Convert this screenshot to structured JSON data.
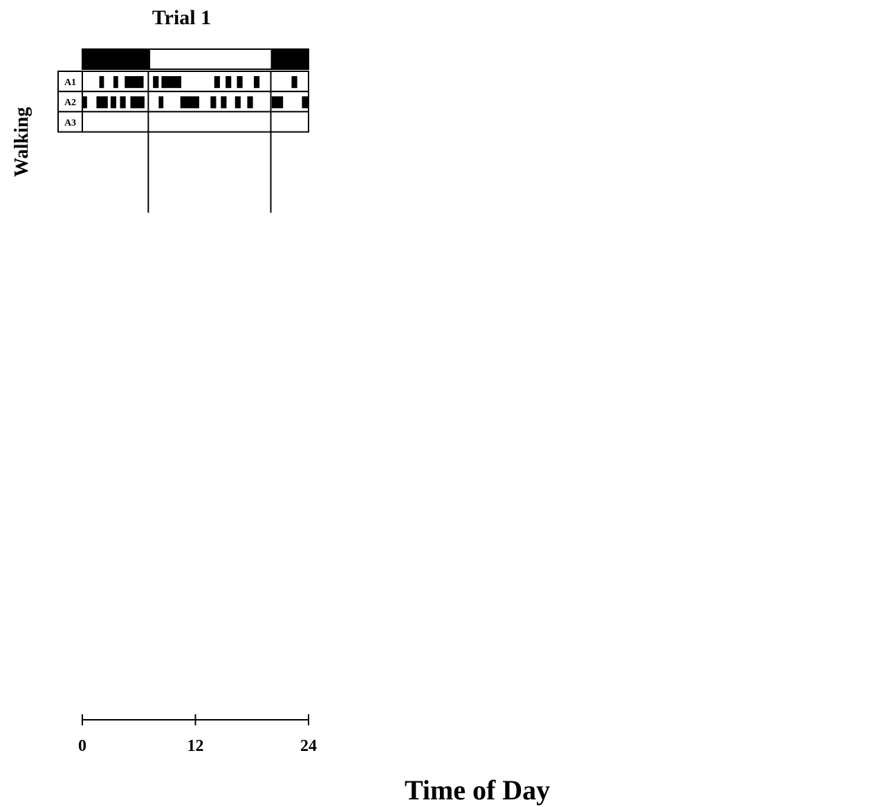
{
  "chart_data": {
    "type": "actogram",
    "xlabel": "Time of Day",
    "xlim": [
      0,
      24
    ],
    "xticks": [
      "0",
      "12",
      "24"
    ],
    "gray_color": "#c0c0c0",
    "bar_color": "#000000",
    "trials": [
      {
        "title": "Trial 1",
        "dark_periods": [
          [
            0,
            7.2
          ],
          [
            20,
            24
          ]
        ],
        "phase_lines": [
          7,
          20
        ],
        "behaviors": [
          {
            "name": "Walking",
            "animals": [
              {
                "id": "A1",
                "missing": false,
                "bouts": [
                  [
                    1.8,
                    2.3
                  ],
                  [
                    3.3,
                    3.8
                  ],
                  [
                    4.5,
                    6.5
                  ],
                  [
                    7.5,
                    8.1
                  ],
                  [
                    8.4,
                    10.5
                  ],
                  [
                    14.0,
                    14.6
                  ],
                  [
                    15.2,
                    15.8
                  ],
                  [
                    16.4,
                    17.0
                  ],
                  [
                    18.2,
                    18.8
                  ],
                  [
                    22.2,
                    22.8
                  ]
                ]
              },
              {
                "id": "A2",
                "missing": false,
                "bouts": [
                  [
                    0.0,
                    0.5
                  ],
                  [
                    1.5,
                    2.7
                  ],
                  [
                    3.0,
                    3.6
                  ],
                  [
                    4.0,
                    4.6
                  ],
                  [
                    5.1,
                    5.8
                  ],
                  [
                    5.8,
                    6.6
                  ],
                  [
                    8.1,
                    8.6
                  ],
                  [
                    10.4,
                    12.4
                  ],
                  [
                    13.6,
                    14.2
                  ],
                  [
                    14.7,
                    15.3
                  ],
                  [
                    16.2,
                    16.8
                  ],
                  [
                    17.5,
                    18.1
                  ],
                  [
                    20.1,
                    21.3
                  ],
                  [
                    23.3,
                    24.0
                  ]
                ]
              },
              {
                "id": "A3",
                "missing": false,
                "bouts": []
              }
            ]
          }
        ]
      }
    ]
  }
}
